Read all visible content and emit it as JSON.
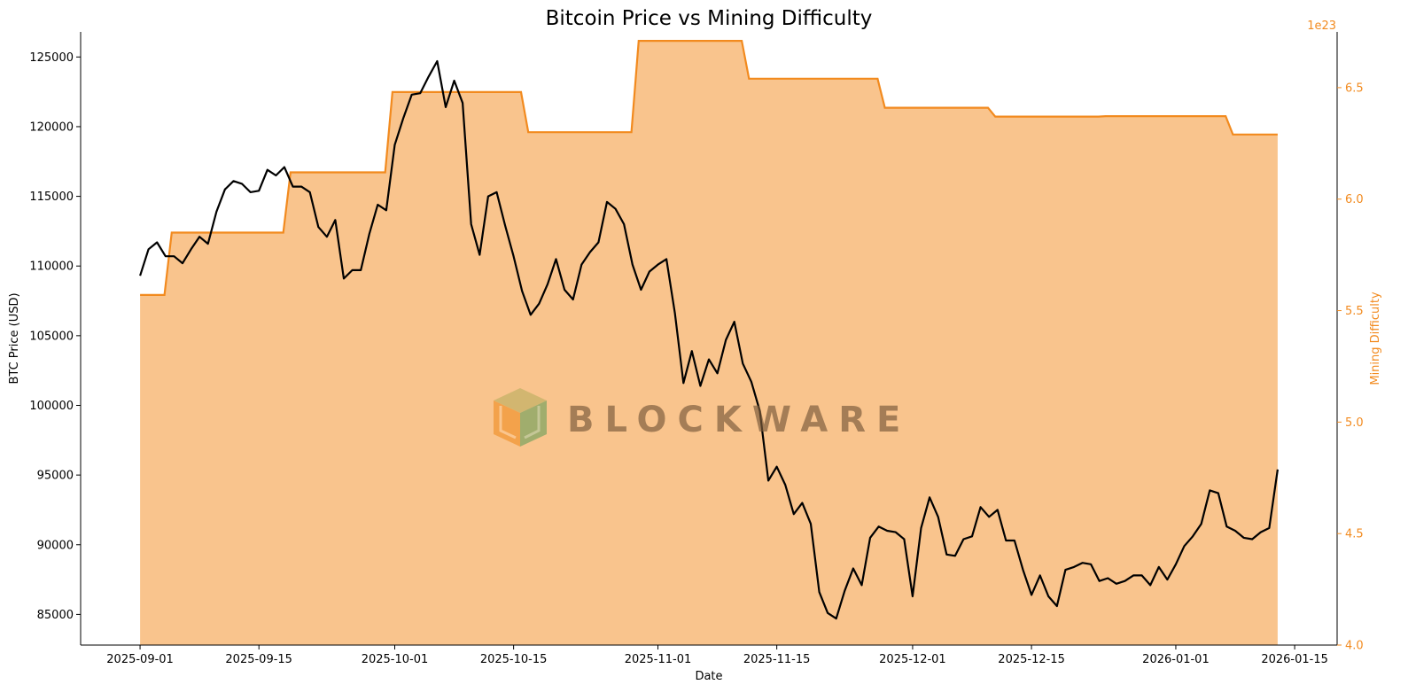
{
  "chart_data": {
    "type": "line",
    "title": "Bitcoin Price vs Mining Difficulty",
    "xlabel": "Date",
    "ylabel": "BTC Price (USD)",
    "ylabel_right": "Mining Difficulty",
    "right_axis_exponent": "1e23",
    "x_ticks": [
      "2025-09-01",
      "2025-09-15",
      "2025-10-01",
      "2025-10-15",
      "2025-11-01",
      "2025-11-15",
      "2025-12-01",
      "2025-12-15",
      "2026-01-01",
      "2026-01-15"
    ],
    "y_ticks": [
      "85000",
      "90000",
      "95000",
      "100000",
      "105000",
      "110000",
      "115000",
      "120000",
      "125000"
    ],
    "y_right_ticks": [
      "4.0",
      "4.5",
      "5.0",
      "5.5",
      "6.0",
      "6.5"
    ],
    "ylim": [
      82800,
      126800
    ],
    "ylim_right": [
      4.0,
      6.75
    ],
    "xlim": [
      "2025-08-25",
      "2026-01-20"
    ],
    "grid": false,
    "colors": {
      "price_line": "#000000",
      "difficulty_line": "#f28a1e",
      "difficulty_fill": "#f9c48d"
    },
    "series": [
      {
        "name": "BTC Price (USD)",
        "axis": "left",
        "start_date": "2025-09-01",
        "step_days": 1,
        "values": [
          109300,
          111200,
          111700,
          110700,
          110700,
          110200,
          111200,
          112100,
          111600,
          113900,
          115500,
          116100,
          115900,
          115300,
          115400,
          116900,
          116500,
          117100,
          115700,
          115700,
          115300,
          112800,
          112100,
          113300,
          109100,
          109700,
          109700,
          112300,
          114400,
          114000,
          118700,
          120600,
          122300,
          122400,
          123600,
          124700,
          121400,
          123300,
          121700,
          113000,
          110800,
          115000,
          115300,
          112900,
          110700,
          108200,
          106500,
          107300,
          108700,
          110500,
          108300,
          107600,
          110100,
          111000,
          111700,
          114600,
          114100,
          113000,
          110100,
          108300,
          109600,
          110100,
          110500,
          106600,
          101600,
          103900,
          101400,
          103300,
          102300,
          104700,
          106000,
          103000,
          101700,
          99600,
          94600,
          95600,
          94300,
          92200,
          93000,
          91500,
          86600,
          85100,
          84700,
          86700,
          88300,
          87100,
          90500,
          91300,
          91000,
          90900,
          90400,
          86300,
          91200,
          93400,
          92000,
          89300,
          89200,
          90400,
          90600,
          92700,
          92000,
          92500,
          90300,
          90300,
          88200,
          86400,
          87800,
          86300,
          85600,
          88200,
          88400,
          88700,
          88600,
          87400,
          87600,
          87200,
          87400,
          87800,
          87800,
          87100,
          88400,
          87500,
          88600,
          89900,
          90600,
          91500,
          93900,
          93700,
          91300,
          91000,
          90500,
          90400,
          90900,
          91200,
          95400
        ]
      },
      {
        "name": "Mining Difficulty",
        "axis": "right",
        "exponent": 23,
        "steps": [
          {
            "date": "2025-09-01",
            "value": 5.57
          },
          {
            "date": "2025-09-04",
            "value": 5.85
          },
          {
            "date": "2025-09-18",
            "value": 6.12
          },
          {
            "date": "2025-09-30",
            "value": 6.48
          },
          {
            "date": "2025-10-16",
            "value": 6.3
          },
          {
            "date": "2025-10-29",
            "value": 6.71
          },
          {
            "date": "2025-11-11",
            "value": 6.54
          },
          {
            "date": "2025-11-27",
            "value": 6.41
          },
          {
            "date": "2025-12-10",
            "value": 6.37
          },
          {
            "date": "2025-12-23",
            "value": 6.372
          },
          {
            "date": "2026-01-07",
            "value": 6.29
          }
        ],
        "end_date": "2026-01-13",
        "filled": true
      }
    ]
  },
  "watermark": {
    "text": "BLOCKWARE"
  }
}
